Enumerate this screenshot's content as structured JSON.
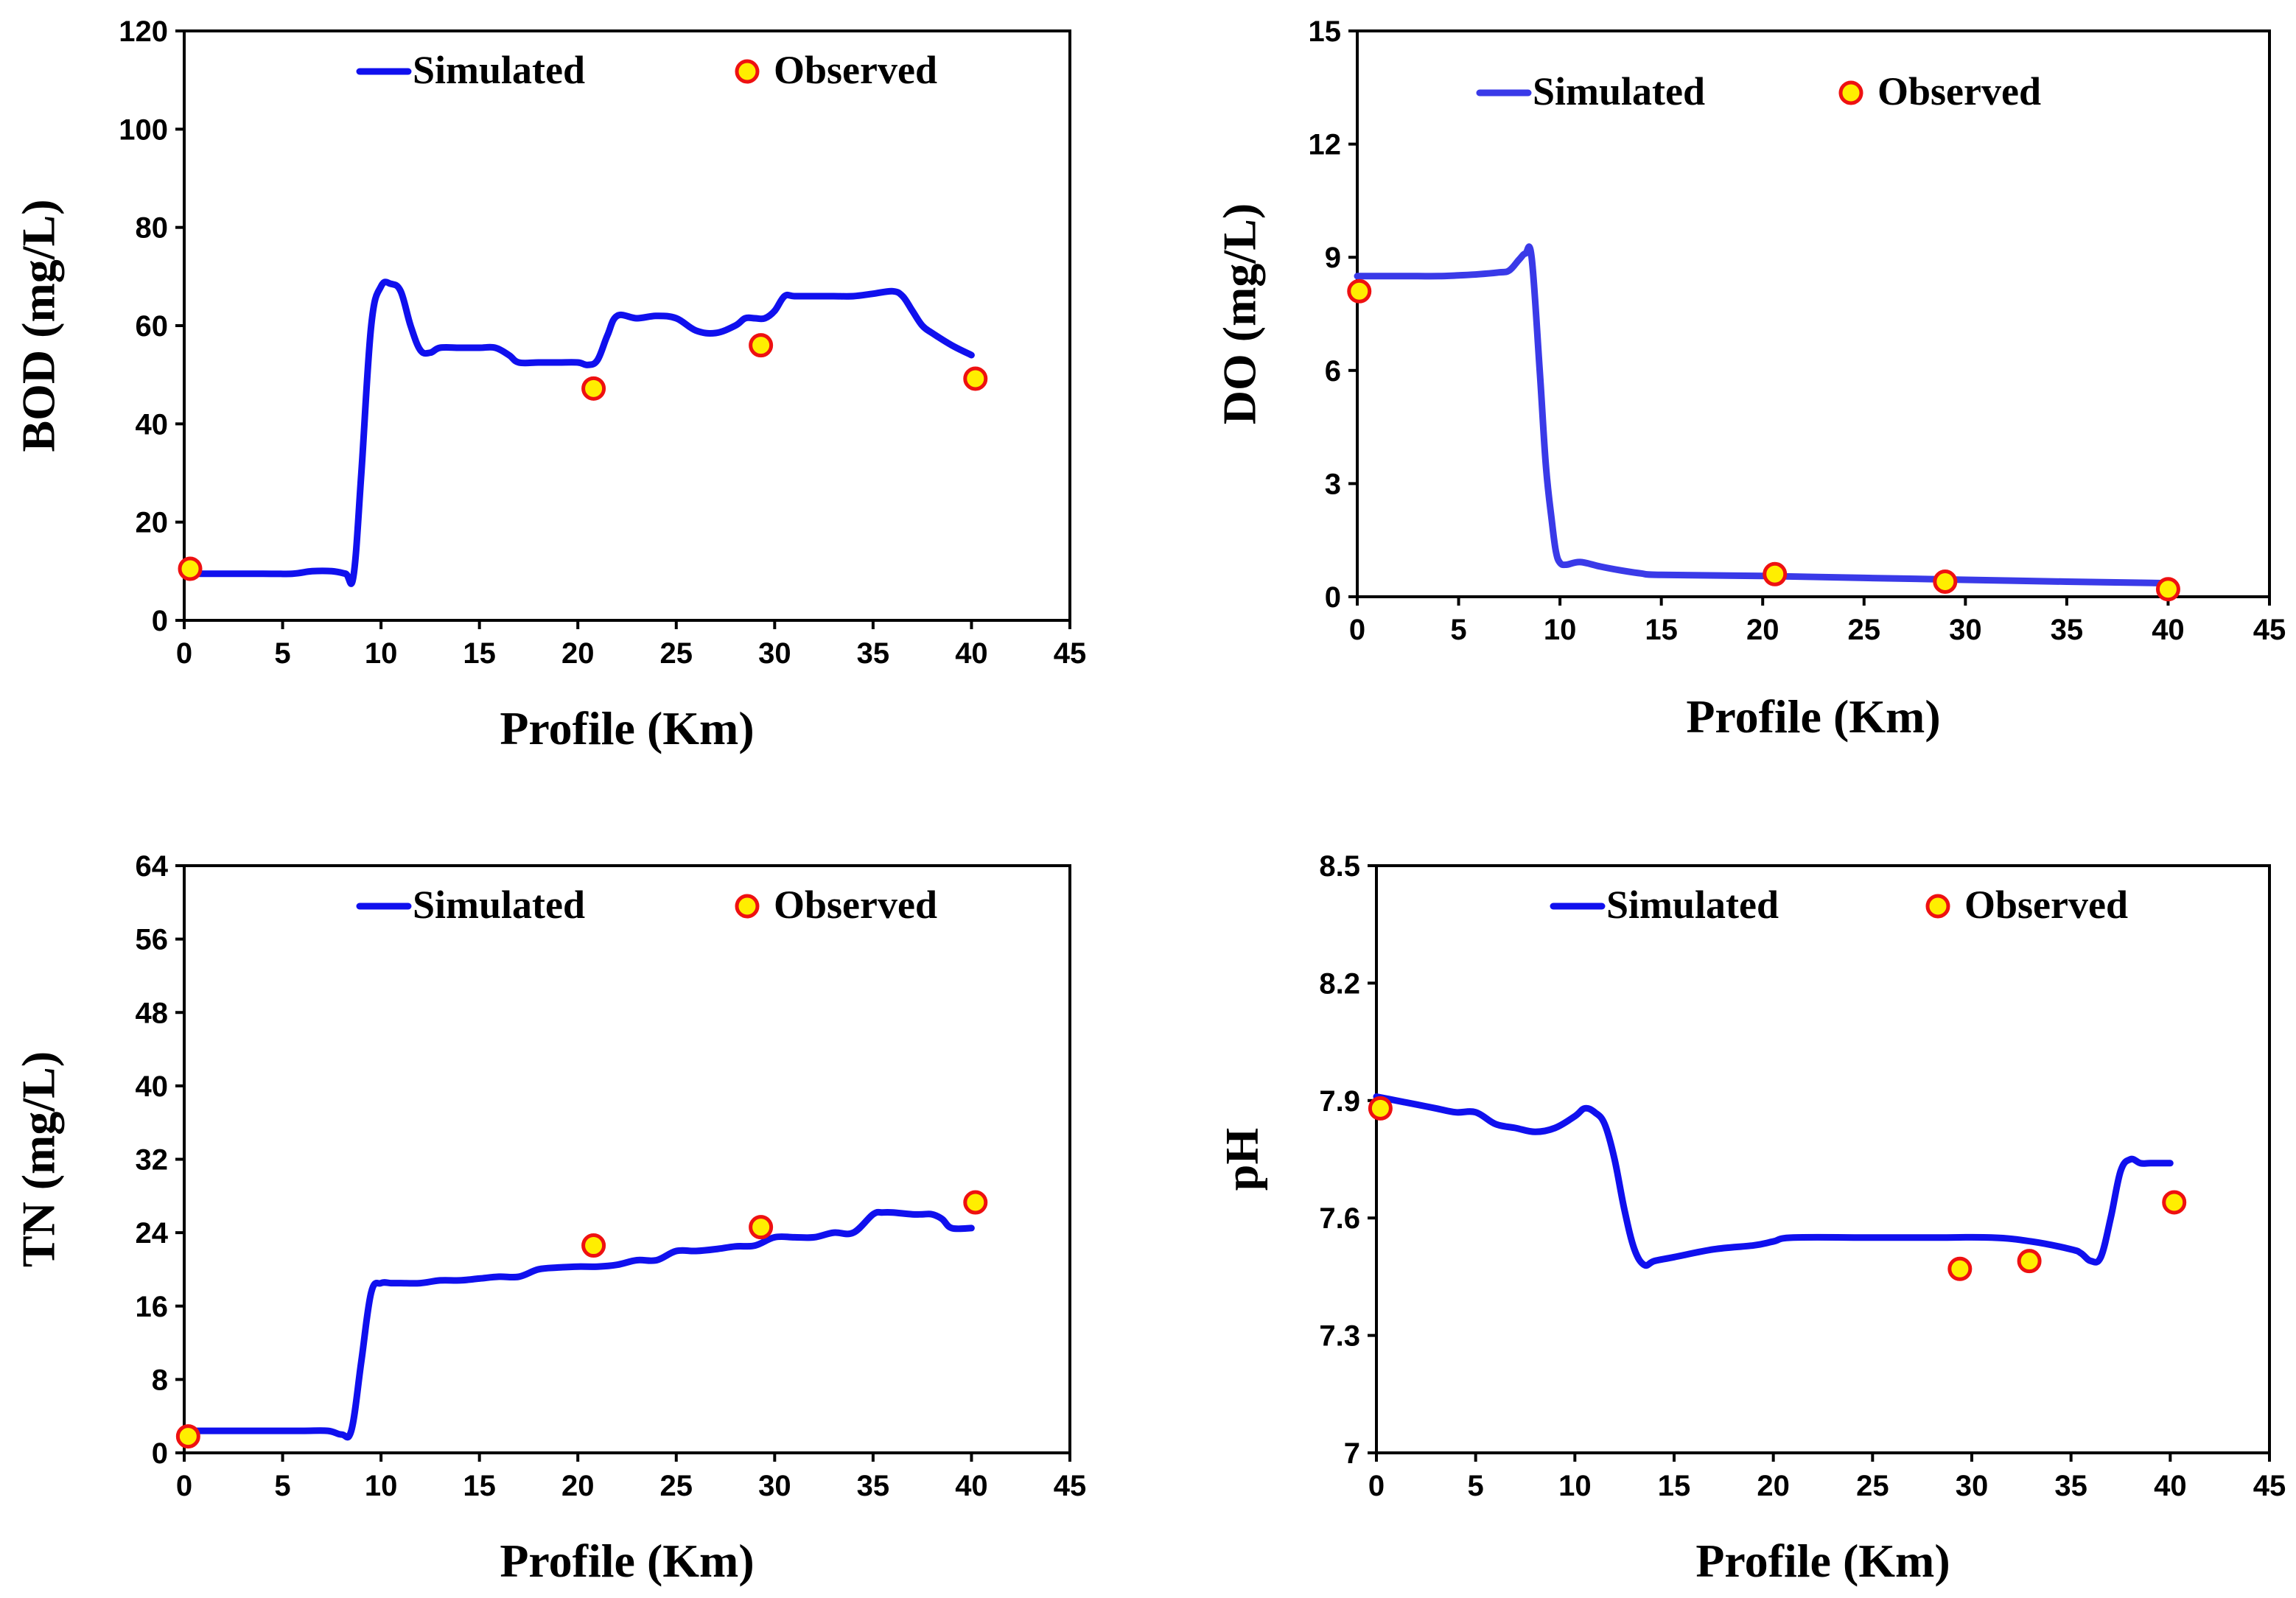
{
  "colors": {
    "line": "#1010ee",
    "line_light": "#3a3ae8",
    "marker_fill": "#ffee00",
    "marker_edge": "#ee1111"
  },
  "chart_data": [
    {
      "type": "line",
      "xlabel": "Profile (Km)",
      "ylabel": "BOD (mg/L)",
      "xlim": [
        0,
        45
      ],
      "ylim": [
        0,
        120
      ],
      "xticks": [
        "0",
        "5",
        "10",
        "15",
        "20",
        "25",
        "30",
        "35",
        "40",
        "45"
      ],
      "yticks": [
        "0",
        "20",
        "40",
        "60",
        "80",
        "100",
        "120"
      ],
      "legend": {
        "position": "top",
        "simulated": "Simulated",
        "observed": "Observed"
      },
      "series": [
        {
          "name": "Simulated",
          "kind": "line",
          "x": [
            0,
            2,
            4,
            5.5,
            6.5,
            7.5,
            8.2,
            8.6,
            9,
            9.5,
            10,
            10.5,
            11,
            11.5,
            12,
            12.5,
            13,
            14,
            15,
            15.8,
            16.5,
            17,
            18,
            19,
            20,
            20.5,
            21,
            21.5,
            22,
            23,
            24,
            25,
            26,
            27,
            28,
            28.5,
            29,
            29.5,
            30,
            30.5,
            31,
            32,
            33,
            34,
            35,
            36,
            36.5,
            37,
            37.5,
            38,
            39,
            40
          ],
          "y": [
            9.5,
            9.5,
            9.5,
            9.5,
            10,
            10,
            9.5,
            9,
            30,
            60,
            68,
            68.5,
            67,
            60,
            55,
            54.5,
            55.5,
            55.5,
            55.5,
            55.5,
            54,
            52.5,
            52.5,
            52.5,
            52.5,
            52,
            53,
            58,
            62,
            61.5,
            62,
            61.5,
            59,
            58.5,
            60,
            61.5,
            61.5,
            61.5,
            63,
            66,
            66,
            66,
            66,
            66,
            66.5,
            67,
            66,
            63,
            60,
            58.5,
            56,
            54
          ]
        },
        {
          "name": "Observed",
          "kind": "scatter",
          "x": [
            0.3,
            20.8,
            29.3,
            40.2
          ],
          "y": [
            10.5,
            47.2,
            56,
            49.2
          ]
        }
      ]
    },
    {
      "type": "line",
      "xlabel": "Profile (Km)",
      "ylabel": "DO (mg/L)",
      "xlim": [
        0,
        45
      ],
      "ylim": [
        0,
        15
      ],
      "xticks": [
        "0",
        "5",
        "10",
        "15",
        "20",
        "25",
        "30",
        "35",
        "40",
        "45"
      ],
      "yticks": [
        "0",
        "3",
        "6",
        "9",
        "12",
        "15"
      ],
      "legend": {
        "position": "top",
        "simulated": "Simulated",
        "observed": "Observed"
      },
      "series": [
        {
          "name": "Simulated",
          "kind": "line",
          "x": [
            0,
            1,
            2,
            3,
            4,
            5,
            6,
            7,
            7.5,
            8,
            8.3,
            8.6,
            9,
            9.3,
            9.6,
            9.8,
            10,
            10.3,
            11,
            12,
            13,
            14,
            15,
            20,
            25,
            30,
            35,
            40
          ],
          "y": [
            8.5,
            8.5,
            8.5,
            8.5,
            8.5,
            8.52,
            8.55,
            8.6,
            8.65,
            8.95,
            9.1,
            9.0,
            6,
            3.5,
            2,
            1.2,
            0.9,
            0.85,
            0.92,
            0.8,
            0.7,
            0.62,
            0.58,
            0.55,
            0.5,
            0.45,
            0.4,
            0.36
          ]
        },
        {
          "name": "Observed",
          "kind": "scatter",
          "x": [
            0.1,
            20.6,
            29,
            40
          ],
          "y": [
            8.1,
            0.6,
            0.4,
            0.2
          ]
        }
      ]
    },
    {
      "type": "line",
      "xlabel": "Profile (Km)",
      "ylabel": "TN (mg/L)",
      "xlim": [
        0,
        45
      ],
      "ylim": [
        0,
        64
      ],
      "xticks": [
        "0",
        "5",
        "10",
        "15",
        "20",
        "25",
        "30",
        "35",
        "40",
        "45"
      ],
      "yticks": [
        "0",
        "8",
        "16",
        "24",
        "32",
        "40",
        "48",
        "56",
        "64"
      ],
      "legend": {
        "position": "top",
        "simulated": "Simulated",
        "observed": "Observed"
      },
      "series": [
        {
          "name": "Simulated",
          "kind": "line",
          "x": [
            0,
            2,
            4,
            6,
            7.3,
            8,
            8.5,
            9,
            9.5,
            10,
            10.5,
            11,
            12,
            13,
            14,
            15,
            16,
            17,
            18,
            19,
            20,
            21,
            22,
            23,
            24,
            25,
            26,
            27,
            28,
            29,
            30,
            31,
            32,
            33,
            34,
            35,
            35.5,
            36,
            37,
            37.5,
            38,
            38.5,
            39,
            40
          ],
          "y": [
            2.4,
            2.4,
            2.4,
            2.4,
            2.4,
            2,
            2.5,
            10,
            17.5,
            18.5,
            18.5,
            18.5,
            18.5,
            18.8,
            18.8,
            19,
            19.2,
            19.2,
            20,
            20.2,
            20.3,
            20.3,
            20.5,
            21,
            21,
            22,
            22,
            22.2,
            22.5,
            22.6,
            23.5,
            23.5,
            23.5,
            24,
            24,
            26,
            26.2,
            26.2,
            26,
            26,
            26,
            25.5,
            24.5,
            24.5
          ]
        },
        {
          "name": "Observed",
          "kind": "scatter",
          "x": [
            0.2,
            20.8,
            29.3,
            40.2
          ],
          "y": [
            1.8,
            22.6,
            24.6,
            27.3
          ]
        }
      ]
    },
    {
      "type": "line",
      "xlabel": "Profile (Km)",
      "ylabel": "pH",
      "xlim": [
        0,
        45
      ],
      "ylim": [
        7,
        8.5
      ],
      "xticks": [
        "0",
        "5",
        "10",
        "15",
        "20",
        "25",
        "30",
        "35",
        "40",
        "45"
      ],
      "yticks": [
        "7",
        "7.3",
        "7.6",
        "7.9",
        "8.2",
        "8.5"
      ],
      "legend": {
        "position": "top",
        "simulated": "Simulated",
        "observed": "Observed"
      },
      "series": [
        {
          "name": "Simulated",
          "kind": "line",
          "x": [
            0,
            1,
            2,
            3,
            4,
            5,
            6,
            7,
            8,
            9,
            10,
            10.5,
            11,
            11.5,
            12,
            12.5,
            13,
            13.5,
            14,
            15,
            17,
            19,
            20,
            21,
            25,
            28,
            31,
            33,
            35,
            35.5,
            36,
            36.5,
            37,
            37.5,
            38,
            38.5,
            39,
            40
          ],
          "y": [
            7.91,
            7.9,
            7.89,
            7.88,
            7.87,
            7.87,
            7.84,
            7.83,
            7.82,
            7.83,
            7.86,
            7.88,
            7.87,
            7.84,
            7.75,
            7.62,
            7.52,
            7.48,
            7.49,
            7.5,
            7.52,
            7.53,
            7.54,
            7.55,
            7.55,
            7.55,
            7.55,
            7.54,
            7.52,
            7.51,
            7.49,
            7.5,
            7.6,
            7.72,
            7.75,
            7.74,
            7.74,
            7.74
          ]
        },
        {
          "name": "Observed",
          "kind": "scatter",
          "x": [
            0.2,
            29.4,
            32.9,
            40.2
          ],
          "y": [
            7.88,
            7.47,
            7.49,
            7.64
          ]
        }
      ]
    }
  ]
}
